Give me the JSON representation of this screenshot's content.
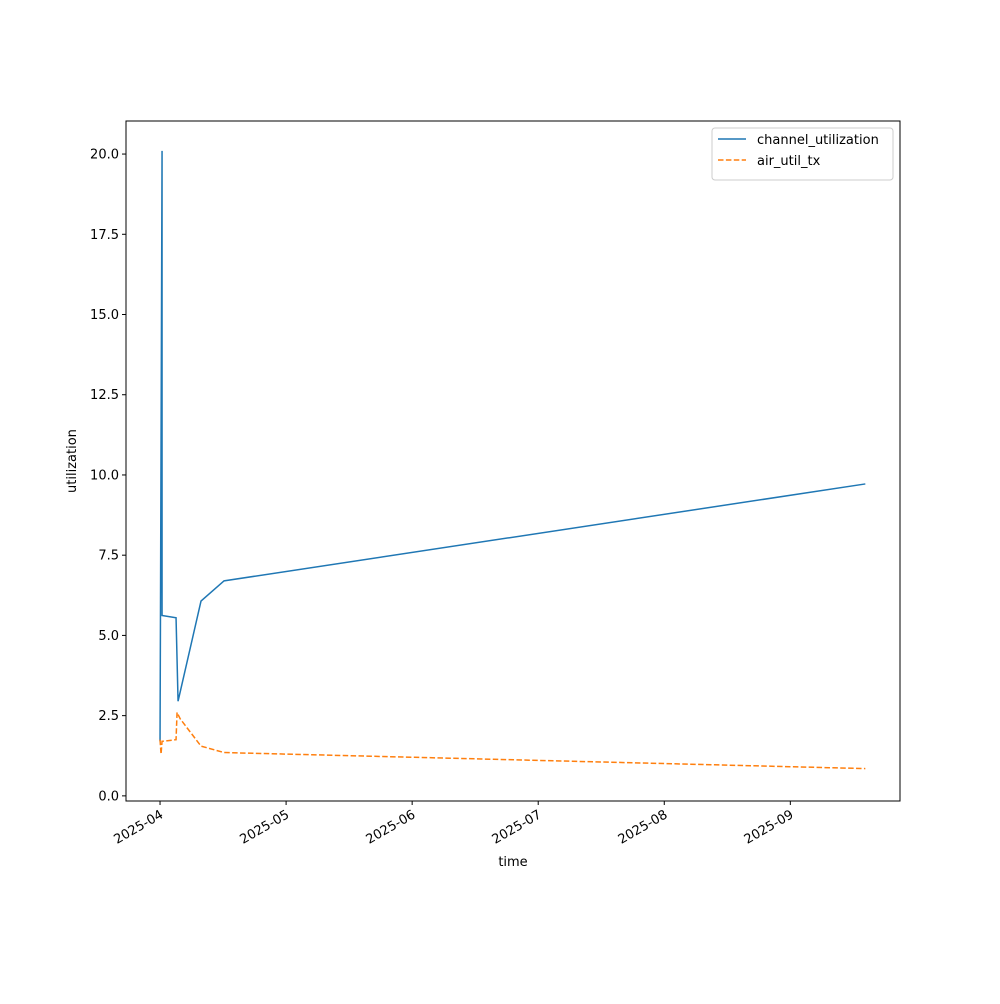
{
  "chart_data": {
    "type": "line",
    "x_label": "time",
    "y_label": "utilization",
    "xlim": [
      3.73,
      9.87
    ],
    "xticks": [
      {
        "value": 4,
        "label": "2025-04"
      },
      {
        "value": 5,
        "label": "2025-05"
      },
      {
        "value": 6,
        "label": "2025-06"
      },
      {
        "value": 7,
        "label": "2025-07"
      },
      {
        "value": 8,
        "label": "2025-08"
      },
      {
        "value": 9,
        "label": "2025-09"
      }
    ],
    "ylim": [
      -0.16,
      21.03
    ],
    "yticks": [
      {
        "value": 0,
        "label": "0.0"
      },
      {
        "value": 2.5,
        "label": "2.5"
      },
      {
        "value": 5,
        "label": "5.0"
      },
      {
        "value": 7.5,
        "label": "7.5"
      },
      {
        "value": 10,
        "label": "10.0"
      },
      {
        "value": 12.5,
        "label": "12.5"
      },
      {
        "value": 15,
        "label": "15.0"
      },
      {
        "value": 17.5,
        "label": "17.5"
      },
      {
        "value": 20,
        "label": "20.0"
      }
    ],
    "legend": "upper right",
    "series": [
      {
        "name": "channel_utilization",
        "color": "#1f77b4",
        "dash": "solid",
        "x": [
          4.0,
          4.016,
          4.016,
          4.127,
          4.143,
          4.325,
          4.508,
          9.595
        ],
        "values": [
          1.7,
          20.1,
          5.62,
          5.55,
          2.95,
          6.07,
          6.7,
          9.72
        ]
      },
      {
        "name": "air_util_tx",
        "color": "#ff7f0e",
        "dash": "dashed",
        "x": [
          4.0,
          4.008,
          4.016,
          4.127,
          4.135,
          4.16,
          4.325,
          4.508,
          9.595
        ],
        "values": [
          1.75,
          1.3,
          1.7,
          1.75,
          2.6,
          2.4,
          1.55,
          1.35,
          0.85
        ]
      }
    ]
  }
}
